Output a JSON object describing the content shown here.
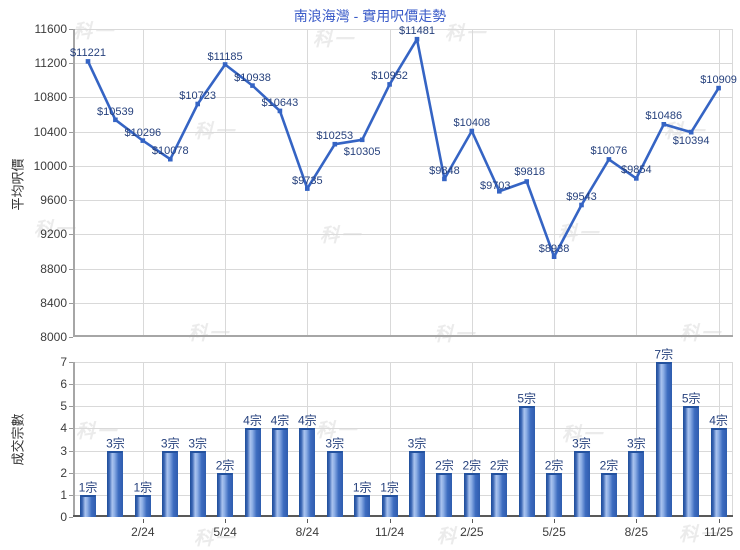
{
  "watermark": {
    "text": "科一"
  },
  "axis": {
    "text_color": "#3c3c3c",
    "grid_color": "#d9d9d9",
    "border_color": "#a6a6a6",
    "bottom_axis_color": "#595959"
  },
  "chart_data": [
    {
      "type": "line",
      "title": "南浪海灣 - 實用呎價走勢",
      "title_color": "#3a5bc8",
      "ylabel": "平均呎價",
      "ylim": [
        8000,
        11600
      ],
      "y_tick_step": 400,
      "grid": true,
      "legend": "none",
      "line_color": "#3564c4",
      "label_color": "#26417d",
      "values": [
        11221,
        10539,
        10296,
        10078,
        10723,
        11185,
        10938,
        10643,
        9735,
        10253,
        10305,
        10952,
        11481,
        9848,
        10408,
        9703,
        9818,
        8938,
        9543,
        10076,
        9854,
        10486,
        10394,
        10909
      ],
      "point_labels": [
        "$11221",
        "$10539",
        "$10296",
        "$10078",
        "$10723",
        "$11185",
        "$10938",
        "$10643",
        "$9735",
        "$10253",
        "$10305",
        "$10952",
        "$11481",
        "$9848",
        "$10408",
        "$9703",
        "$9818",
        "$8938",
        "$9543",
        "$10076",
        "$9854",
        "$10486",
        "$10394",
        "$10909"
      ],
      "x_tick_labels": [
        "2/24",
        "5/24",
        "8/24",
        "11/24",
        "2/25",
        "5/25",
        "8/25",
        "11/25"
      ],
      "x_tick_indices": [
        2,
        5,
        8,
        11,
        14,
        17,
        20,
        23
      ]
    },
    {
      "type": "bar",
      "ylabel": "成交宗數",
      "ylim": [
        0,
        7
      ],
      "y_tick_step": 1,
      "grid": true,
      "legend": "none",
      "label_color": "#26417d",
      "bar_colors": {
        "dark": "#2a57a5",
        "light": "#a9c3ee",
        "mid": "#3c6cc0",
        "border": "#24529e"
      },
      "values": [
        1,
        3,
        1,
        3,
        3,
        2,
        4,
        4,
        4,
        3,
        1,
        1,
        3,
        2,
        2,
        2,
        5,
        2,
        3,
        2,
        3,
        7,
        5,
        4
      ],
      "bar_labels": [
        "1宗",
        "3宗",
        "1宗",
        "3宗",
        "3宗",
        "2宗",
        "4宗",
        "4宗",
        "4宗",
        "3宗",
        "1宗",
        "1宗",
        "3宗",
        "2宗",
        "2宗",
        "2宗",
        "5宗",
        "2宗",
        "3宗",
        "2宗",
        "3宗",
        "7宗",
        "5宗",
        "4宗"
      ],
      "x_tick_labels": [
        "2/24",
        "5/24",
        "8/24",
        "11/24",
        "2/25",
        "5/25",
        "8/25",
        "11/25"
      ],
      "x_tick_indices": [
        2,
        5,
        8,
        11,
        14,
        17,
        20,
        23
      ]
    }
  ]
}
